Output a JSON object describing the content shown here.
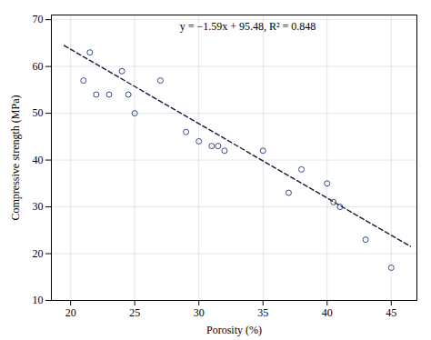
{
  "chart_data": {
    "type": "scatter",
    "xlabel": "Porosity (%)",
    "ylabel": "Compressive strength (MPa)",
    "annotation": "y = −1.59x + 95.48, R² = 0.848",
    "series": [
      {
        "type": "scatter",
        "marker": "circle",
        "color": "#1e3a7a",
        "x": [
          21,
          21.5,
          22,
          23,
          24,
          24.5,
          25,
          27,
          29,
          30,
          31,
          31.5,
          32,
          35,
          37,
          38,
          40,
          40.5,
          41,
          43,
          45
        ],
        "values": [
          57,
          63,
          54,
          54,
          59,
          54,
          50,
          57,
          46,
          44,
          43,
          43,
          42,
          42,
          33,
          38,
          35,
          31,
          30,
          23,
          17
        ]
      },
      {
        "type": "line",
        "line_style": "dashed",
        "color": "#1a1a3a",
        "x": [
          19.5,
          46.5
        ],
        "values": [
          64.475,
          21.545
        ]
      }
    ],
    "xlim": [
      18.5,
      47
    ],
    "ylim": [
      10,
      71
    ],
    "xticks": [
      20,
      25,
      30,
      35,
      40,
      45
    ],
    "yticks": [
      10,
      20,
      30,
      40,
      50,
      60,
      70
    ],
    "grid": true
  }
}
